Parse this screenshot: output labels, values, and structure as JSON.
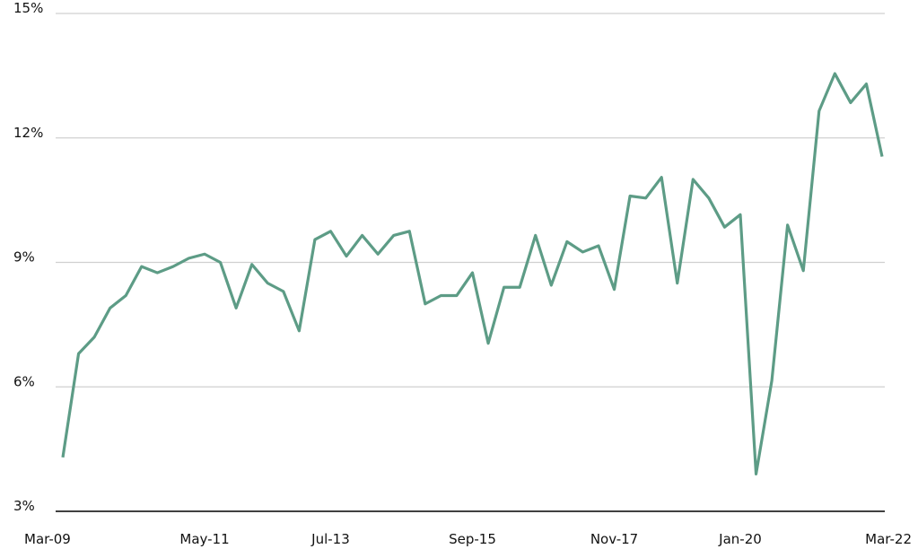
{
  "chart_data": {
    "type": "line",
    "categories": [
      "Mar-09",
      null,
      null,
      null,
      null,
      null,
      null,
      null,
      null,
      "May-11",
      null,
      null,
      null,
      null,
      null,
      null,
      null,
      "Jul-13",
      null,
      null,
      null,
      null,
      null,
      null,
      null,
      null,
      "Sep-15",
      null,
      null,
      null,
      null,
      null,
      null,
      null,
      null,
      "Nov-17",
      null,
      null,
      null,
      null,
      null,
      null,
      null,
      "Jan-20",
      null,
      null,
      null,
      null,
      null,
      null,
      null,
      null,
      "Mar-22"
    ],
    "series": [
      {
        "color": "#5d9c86",
        "values": [
          4.3,
          6.8,
          7.2,
          7.9,
          8.2,
          8.9,
          8.75,
          8.9,
          9.1,
          9.2,
          9.0,
          7.9,
          8.95,
          8.5,
          8.3,
          7.35,
          9.55,
          9.75,
          9.15,
          9.65,
          9.2,
          9.65,
          9.75,
          8.0,
          8.2,
          8.2,
          8.75,
          7.05,
          8.4,
          8.4,
          9.65,
          8.45,
          9.5,
          9.25,
          9.4,
          8.35,
          10.6,
          10.55,
          11.05,
          8.5,
          11.0,
          10.55,
          9.85,
          10.15,
          3.9,
          6.15,
          9.9,
          8.8,
          12.65,
          13.55,
          12.85,
          13.3,
          11.55
        ]
      }
    ],
    "ylim": [
      3,
      15
    ],
    "yticks": [
      {
        "value": 3,
        "label": "3%"
      },
      {
        "value": 6,
        "label": "6%"
      },
      {
        "value": 9,
        "label": "9%"
      },
      {
        "value": 12,
        "label": "12%"
      },
      {
        "value": 15,
        "label": "15%"
      }
    ],
    "grid": true
  }
}
